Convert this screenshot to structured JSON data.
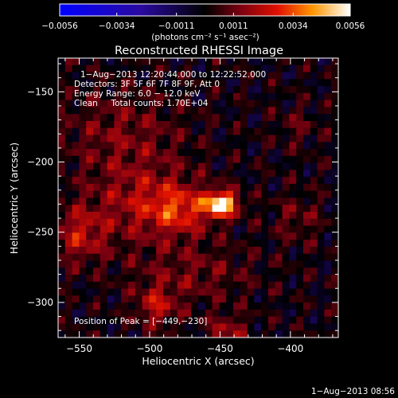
{
  "chart_data": {
    "type": "heatmap",
    "title": "Reconstructed RHESSI Image",
    "xlabel": "Heliocentric X (arcsec)",
    "ylabel": "Heliocentric Y (arcsec)",
    "xlim": [
      -565,
      -366
    ],
    "ylim": [
      -325,
      -126
    ],
    "x_ticks": [
      -550,
      -500,
      -450,
      -400
    ],
    "x_tick_labels": [
      "−550",
      "−500",
      "−450",
      "−400"
    ],
    "y_ticks": [
      -150,
      -200,
      -250,
      -300
    ],
    "y_tick_labels": [
      "−150",
      "−200",
      "−250",
      "−300"
    ],
    "colorbar": {
      "range": [
        -0.0056,
        0.0056
      ],
      "ticks": [
        -0.0056,
        -0.0034,
        -0.0011,
        0.0011,
        0.0034,
        0.0056
      ],
      "tick_labels": [
        "−0.0056",
        "−0.0034",
        "−0.0011",
        "0.0011",
        "0.0034",
        "0.0056"
      ],
      "units": "(photons cm⁻² s⁻¹ asec⁻²)"
    },
    "annotations": {
      "time": "1−Aug−2013 12:20:44.000 to 12:22:52.000",
      "detectors": "Detectors: 3F 5F 6F 7F 8F 9F, Att 0",
      "energy": "Energy Range: 6.0 − 12.0 keV",
      "method": "Clean     Total counts: 1.70E+04",
      "peak": "Position of Peak = [−449,−230]"
    },
    "footer": "1−Aug−2013 08:56",
    "peak": {
      "x": -449,
      "y": -230,
      "value": 0.0056
    },
    "sources": [
      {
        "x": -449,
        "y": -230,
        "sx": 8,
        "sy": 6,
        "amp": 0.0056
      },
      {
        "x": -478,
        "y": -234,
        "sx": 16,
        "sy": 12,
        "amp": 0.0022
      },
      {
        "x": -505,
        "y": -229,
        "sx": 26,
        "sy": 20,
        "amp": 0.0017
      },
      {
        "x": -550,
        "y": -252,
        "sx": 14,
        "sy": 14,
        "amp": 0.002
      },
      {
        "x": -495,
        "y": -303,
        "sx": 10,
        "sy": 10,
        "amp": 0.002
      },
      {
        "x": -445,
        "y": -320,
        "sx": 10,
        "sy": 8,
        "amp": 0.0016
      },
      {
        "x": -520,
        "y": -180,
        "sx": 30,
        "sy": 22,
        "amp": 0.0012
      },
      {
        "x": -470,
        "y": -280,
        "sx": 30,
        "sy": 15,
        "amp": 0.0011
      },
      {
        "x": -395,
        "y": -240,
        "sx": 12,
        "sy": 12,
        "amp": 0.001
      },
      {
        "x": -395,
        "y": -175,
        "sx": 10,
        "sy": 10,
        "amp": 0.0008
      }
    ],
    "grid": false
  }
}
